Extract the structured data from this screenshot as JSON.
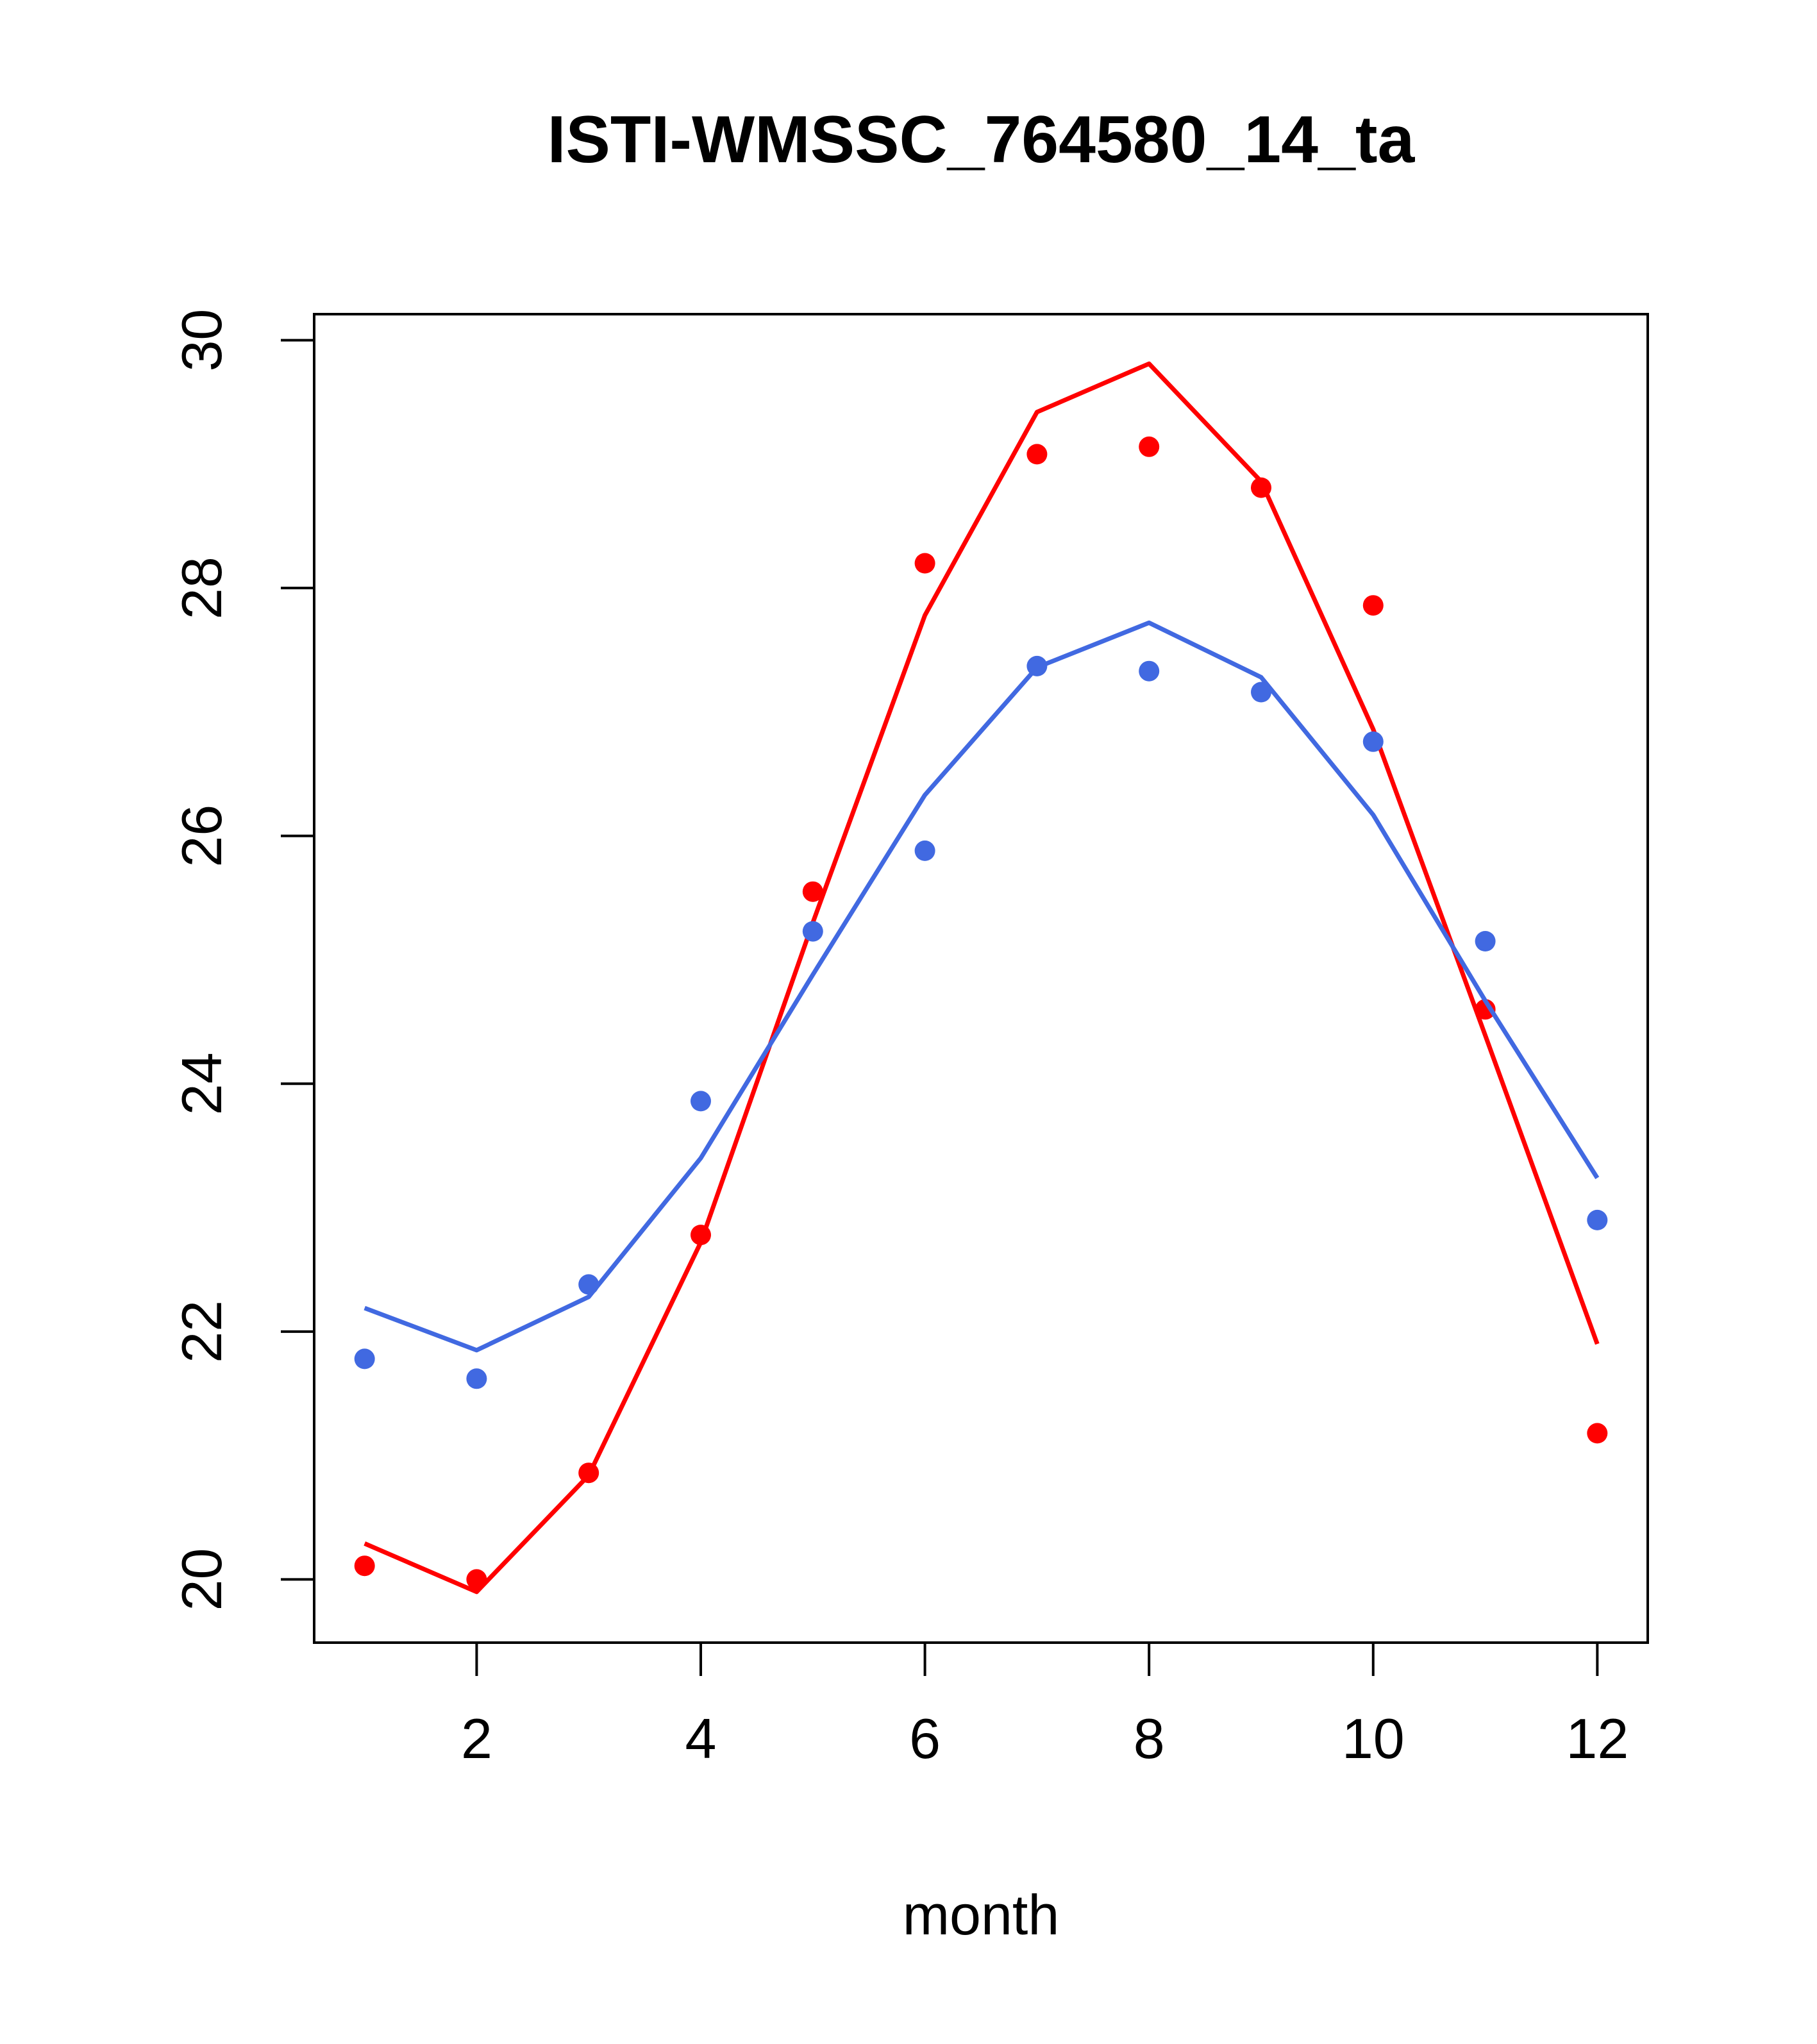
{
  "chart_data": {
    "type": "line",
    "title": "ISTI-WMSSC_764580_14_ta",
    "xlabel": "month",
    "ylabel": "",
    "xlim": [
      0.55,
      12.45
    ],
    "ylim": [
      19.49,
      30.21
    ],
    "x_ticks": [
      "2",
      "4",
      "6",
      "8",
      "10",
      "12"
    ],
    "y_ticks": [
      "20",
      "22",
      "24",
      "26",
      "28",
      "30"
    ],
    "grid": false,
    "legend": "none",
    "x": [
      1,
      2,
      3,
      4,
      5,
      6,
      7,
      8,
      9,
      10,
      11,
      12
    ],
    "series": [
      {
        "color": "#ff0000",
        "points": [
          20.11,
          20.0,
          20.86,
          22.78,
          25.55,
          28.2,
          29.08,
          29.14,
          28.81,
          27.86,
          24.6,
          21.18
        ],
        "line": [
          20.29,
          19.9,
          20.84,
          22.72,
          25.3,
          27.78,
          29.42,
          29.81,
          28.86,
          26.86,
          24.39,
          21.9
        ]
      },
      {
        "color": "#4169e1",
        "points": [
          21.78,
          21.62,
          22.38,
          23.86,
          25.23,
          25.88,
          27.37,
          27.33,
          27.16,
          26.76,
          25.15,
          22.9
        ],
        "line": [
          22.19,
          21.85,
          22.28,
          23.4,
          24.88,
          26.33,
          27.36,
          27.72,
          27.28,
          26.17,
          24.67,
          23.24
        ]
      }
    ]
  }
}
